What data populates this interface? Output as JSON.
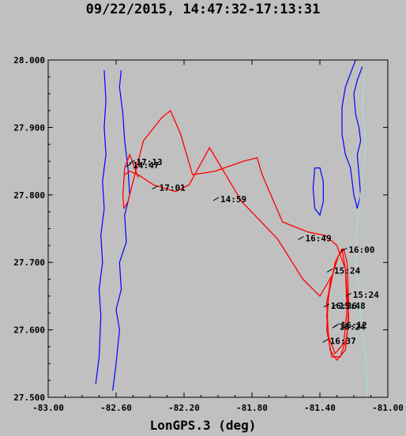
{
  "title": "09/22/2015, 14:47:32-17:13:31",
  "chart_data": {
    "type": "line",
    "title": "09/22/2015, 14:47:32-17:13:31",
    "xlabel": "LonGPS.3 (deg)",
    "ylabel": "",
    "xlim": [
      -83.0,
      -81.0
    ],
    "ylim": [
      27.5,
      28.0
    ],
    "x_ticks": [
      "-83.00",
      "-82.60",
      "-82.20",
      "-81.80",
      "-81.40",
      "-81.00"
    ],
    "y_ticks": [
      "27.500",
      "27.600",
      "27.700",
      "27.800",
      "27.900",
      "28.000"
    ],
    "grid": false,
    "colors": {
      "flight_track": "#ff0000",
      "coastline": "#0000ff",
      "shelf_contour": "#a8d8e0",
      "background": "#c0c0c0"
    },
    "series": [
      {
        "key": "track",
        "values": [
          [
            -82.47,
            27.826
          ],
          [
            -82.52,
            27.86
          ],
          [
            -82.55,
            27.84
          ],
          [
            -82.56,
            27.8
          ],
          [
            -82.555,
            27.78
          ],
          [
            -82.53,
            27.79
          ],
          [
            -82.5,
            27.82
          ],
          [
            -82.44,
            27.88
          ],
          [
            -82.33,
            27.915
          ],
          [
            -82.28,
            27.925
          ],
          [
            -82.22,
            27.89
          ],
          [
            -82.15,
            27.83
          ],
          [
            -82.02,
            27.835
          ],
          [
            -81.85,
            27.85
          ],
          [
            -81.77,
            27.855
          ],
          [
            -81.74,
            27.83
          ],
          [
            -81.62,
            27.76
          ],
          [
            -81.47,
            27.745
          ],
          [
            -81.37,
            27.74
          ],
          [
            -81.3,
            27.725
          ],
          [
            -81.25,
            27.69
          ],
          [
            -81.23,
            27.62
          ],
          [
            -81.25,
            27.57
          ],
          [
            -81.3,
            27.555
          ],
          [
            -81.34,
            27.57
          ],
          [
            -81.36,
            27.62
          ],
          [
            -81.34,
            27.67
          ],
          [
            -81.29,
            27.71
          ],
          [
            -81.26,
            27.72
          ],
          [
            -81.24,
            27.7
          ],
          [
            -81.23,
            27.64
          ],
          [
            -81.24,
            27.59
          ],
          [
            -81.28,
            27.56
          ],
          [
            -81.33,
            27.56
          ],
          [
            -81.36,
            27.6
          ],
          [
            -81.35,
            27.65
          ],
          [
            -81.31,
            27.7
          ],
          [
            -81.27,
            27.72
          ],
          [
            -81.25,
            27.69
          ],
          [
            -81.24,
            27.63
          ],
          [
            -81.26,
            27.58
          ],
          [
            -81.31,
            27.565
          ],
          [
            -81.35,
            27.59
          ],
          [
            -81.36,
            27.64
          ],
          [
            -81.33,
            27.68
          ],
          [
            -81.4,
            27.65
          ],
          [
            -81.5,
            27.675
          ],
          [
            -81.65,
            27.735
          ],
          [
            -81.86,
            27.79
          ],
          [
            -82.05,
            27.87
          ],
          [
            -82.17,
            27.815
          ],
          [
            -82.25,
            27.805
          ],
          [
            -82.38,
            27.815
          ],
          [
            -82.47,
            27.83
          ],
          [
            -82.52,
            27.835
          ],
          [
            -82.55,
            27.83
          ]
        ]
      },
      {
        "key": "coast",
        "values": [
          [
            -82.72,
            27.52
          ],
          [
            -82.7,
            27.56
          ],
          [
            -82.69,
            27.62
          ],
          [
            -82.7,
            27.66
          ],
          [
            -82.68,
            27.7
          ],
          [
            -82.69,
            27.74
          ],
          [
            -82.67,
            27.78
          ],
          [
            -82.68,
            27.82
          ],
          [
            -82.66,
            27.86
          ],
          [
            -82.67,
            27.9
          ],
          [
            -82.66,
            27.94
          ],
          [
            -82.67,
            27.985
          ]
        ]
      },
      {
        "key": "coast2",
        "values": [
          [
            -82.62,
            27.51
          ],
          [
            -82.6,
            27.55
          ],
          [
            -82.58,
            27.6
          ],
          [
            -82.6,
            27.63
          ],
          [
            -82.57,
            27.66
          ],
          [
            -82.58,
            27.7
          ],
          [
            -82.54,
            27.73
          ],
          [
            -82.55,
            27.77
          ],
          [
            -82.52,
            27.8
          ],
          [
            -82.53,
            27.84
          ],
          [
            -82.55,
            27.88
          ],
          [
            -82.56,
            27.92
          ],
          [
            -82.58,
            27.96
          ],
          [
            -82.57,
            27.985
          ]
        ]
      },
      {
        "key": "coast3",
        "values": [
          [
            -81.15,
            27.99
          ],
          [
            -81.18,
            27.97
          ],
          [
            -81.2,
            27.95
          ],
          [
            -81.19,
            27.92
          ],
          [
            -81.17,
            27.9
          ],
          [
            -81.16,
            27.88
          ],
          [
            -81.18,
            27.86
          ],
          [
            -81.17,
            27.83
          ],
          [
            -81.16,
            27.8
          ],
          [
            -81.18,
            27.78
          ],
          [
            -81.2,
            27.8
          ],
          [
            -81.22,
            27.84
          ],
          [
            -81.25,
            27.86
          ],
          [
            -81.27,
            27.89
          ],
          [
            -81.27,
            27.93
          ],
          [
            -81.25,
            27.96
          ],
          [
            -81.22,
            27.98
          ],
          [
            -81.19,
            28.0
          ]
        ]
      },
      {
        "key": "lake",
        "values": [
          [
            -81.43,
            27.84
          ],
          [
            -81.4,
            27.84
          ],
          [
            -81.38,
            27.82
          ],
          [
            -81.38,
            27.79
          ],
          [
            -81.4,
            27.77
          ],
          [
            -81.43,
            27.78
          ],
          [
            -81.44,
            27.81
          ],
          [
            -81.43,
            27.84
          ]
        ]
      },
      {
        "key": "shelf",
        "values": [
          [
            -81.12,
            27.5
          ],
          [
            -81.13,
            27.56
          ],
          [
            -81.15,
            27.6
          ],
          [
            -81.17,
            27.66
          ],
          [
            -81.19,
            27.7
          ],
          [
            -81.18,
            27.76
          ],
          [
            -81.16,
            27.8
          ],
          [
            -81.14,
            27.84
          ],
          [
            -81.13,
            27.88
          ],
          [
            -81.15,
            27.93
          ],
          [
            -81.14,
            27.98
          ]
        ]
      }
    ],
    "time_labels": [
      {
        "text": "17:13",
        "lon": -82.495,
        "lat": 27.849
      },
      {
        "text": "14:47",
        "lon": -82.515,
        "lat": 27.844
      },
      {
        "text": "17:01",
        "lon": -82.36,
        "lat": 27.811
      },
      {
        "text": "14:59",
        "lon": -82.0,
        "lat": 27.794
      },
      {
        "text": "16:49",
        "lon": -81.5,
        "lat": 27.736
      },
      {
        "text": "16:00",
        "lon": -81.245,
        "lat": 27.719
      },
      {
        "text": "15:24",
        "lon": -81.33,
        "lat": 27.688
      },
      {
        "text": "15:24",
        "lon": -81.22,
        "lat": 27.652
      },
      {
        "text": "15:48",
        "lon": -81.3,
        "lat": 27.636
      },
      {
        "text": "16:36",
        "lon": -81.35,
        "lat": 27.636
      },
      {
        "text": "16:12",
        "lon": -81.29,
        "lat": 27.607
      },
      {
        "text": "16:24",
        "lon": -81.3,
        "lat": 27.605
      },
      {
        "text": "16:37",
        "lon": -81.355,
        "lat": 27.584
      }
    ]
  }
}
